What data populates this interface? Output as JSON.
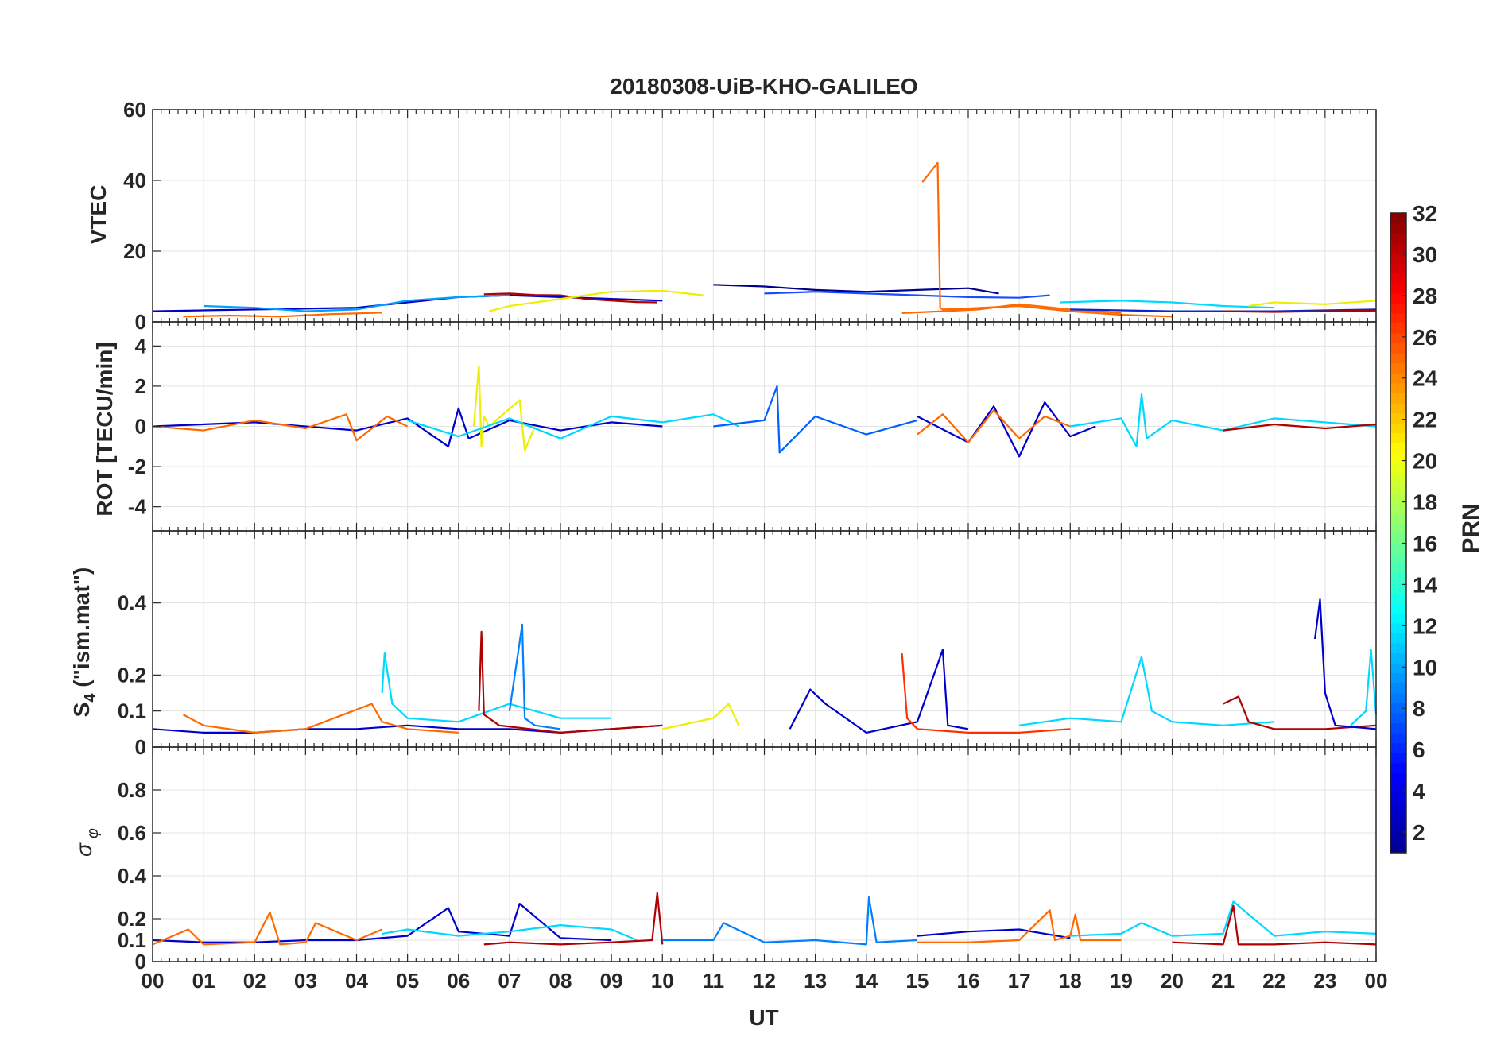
{
  "figure_title": "20180308-UiB-KHO-GALILEO",
  "colormap": [
    "#00008f",
    "#0000ff",
    "#0080ff",
    "#00ffff",
    "#80ff80",
    "#ffff00",
    "#ff8000",
    "#ff0000",
    "#800000"
  ],
  "colorbar": {
    "label": "PRN",
    "range": [
      1,
      32
    ],
    "tick_labels": [
      "2",
      "4",
      "6",
      "8",
      "10",
      "12",
      "14",
      "16",
      "18",
      "20",
      "22",
      "24",
      "26",
      "28",
      "30",
      "32"
    ]
  },
  "chart_data": [
    {
      "type": "line",
      "title": "20180308-UiB-KHO-GALILEO",
      "ylabel": "VTEC",
      "xlabel": "",
      "xlim": [
        0,
        24
      ],
      "ylim": [
        0,
        60
      ],
      "yticks": [
        "0",
        "20",
        "40",
        "60"
      ],
      "grid": true,
      "series": [
        {
          "color": "#0000cc",
          "x": [
            0,
            2,
            4,
            5,
            6,
            7,
            8,
            9,
            10
          ],
          "y": [
            3,
            3.5,
            4,
            5.5,
            7,
            7.5,
            7,
            6.5,
            6
          ]
        },
        {
          "color": "#00a0ff",
          "x": [
            1,
            2,
            3,
            4,
            5,
            6,
            7
          ],
          "y": [
            4.5,
            4,
            3,
            3.5,
            6,
            7,
            7.5
          ]
        },
        {
          "color": "#ff6a00",
          "x": [
            0.6,
            1.5,
            2.5,
            3.5,
            4.5
          ],
          "y": [
            1.5,
            1.8,
            1.5,
            2.2,
            2.6
          ]
        },
        {
          "color": "#b00000",
          "x": [
            6.5,
            7,
            7.5,
            8,
            8.5,
            9,
            9.5,
            9.9
          ],
          "y": [
            7.8,
            8,
            7.6,
            7.5,
            6.5,
            6,
            5.6,
            5.5
          ]
        },
        {
          "color": "#eeee00",
          "x": [
            6.6,
            7,
            8,
            9,
            10,
            10.8
          ],
          "y": [
            3,
            4.5,
            6.5,
            8.5,
            8.8,
            7.5
          ]
        },
        {
          "color": "#00008f",
          "x": [
            11,
            12,
            13,
            14,
            15,
            16,
            16.6
          ],
          "y": [
            10.5,
            10,
            9,
            8.5,
            9,
            9.5,
            8
          ]
        },
        {
          "color": "#1a4cff",
          "x": [
            12,
            13,
            14,
            15,
            16,
            17,
            17.6
          ],
          "y": [
            8,
            8.5,
            8,
            7.5,
            7,
            6.8,
            7.5
          ]
        },
        {
          "color": "#ff6a00",
          "x": [
            15.1,
            15.4,
            15.45,
            15.5,
            16,
            17,
            18,
            19,
            20
          ],
          "y": [
            39.5,
            45,
            4,
            3.5,
            3.8,
            4.5,
            3,
            2,
            1.5
          ]
        },
        {
          "color": "#ff6a00",
          "x": [
            14.7,
            15.5,
            16.2,
            17,
            18,
            19
          ],
          "y": [
            2.5,
            3,
            3.5,
            5,
            3.5,
            2.5
          ]
        },
        {
          "color": "#00d8ff",
          "x": [
            17.8,
            19,
            20,
            21,
            22
          ],
          "y": [
            5.5,
            6,
            5.5,
            4.5,
            4
          ]
        },
        {
          "color": "#eeee00",
          "x": [
            21.5,
            22,
            23,
            24
          ],
          "y": [
            4.5,
            5.5,
            5,
            6
          ]
        },
        {
          "color": "#0a28cc",
          "x": [
            18,
            20,
            22,
            24
          ],
          "y": [
            3.5,
            3,
            3,
            3.5
          ]
        },
        {
          "color": "#b00000",
          "x": [
            21,
            22,
            23,
            24
          ],
          "y": [
            3,
            2.8,
            3,
            3.2
          ]
        }
      ]
    },
    {
      "type": "line",
      "ylabel": "ROT [TECU/min]",
      "xlabel": "",
      "xlim": [
        0,
        24
      ],
      "ylim": [
        -5.2,
        5.2
      ],
      "yticks": [
        "-4",
        "-2",
        "0",
        "2",
        "4"
      ],
      "grid": true,
      "series": [
        {
          "color": "#0000cc",
          "x": [
            0,
            2,
            4,
            5,
            5.8,
            6,
            6.2,
            7,
            8,
            9,
            10
          ],
          "y": [
            0,
            0.2,
            -0.2,
            0.4,
            -1,
            0.9,
            -0.6,
            0.3,
            -0.2,
            0.2,
            0
          ]
        },
        {
          "color": "#ff6a00",
          "x": [
            0,
            1,
            2,
            3,
            3.8,
            4,
            4.6,
            5
          ],
          "y": [
            0,
            -0.2,
            0.3,
            -0.1,
            0.6,
            -0.7,
            0.5,
            0
          ]
        },
        {
          "color": "#eeee00",
          "x": [
            6.3,
            6.4,
            6.45,
            6.5,
            6.6,
            7.2,
            7.3,
            7.5
          ],
          "y": [
            0,
            3,
            -1,
            0.5,
            0,
            1.3,
            -1.2,
            0
          ]
        },
        {
          "color": "#00d8ff",
          "x": [
            5,
            6,
            7,
            8,
            9,
            10,
            11,
            11.5
          ],
          "y": [
            0.3,
            -0.5,
            0.4,
            -0.6,
            0.5,
            0.2,
            0.6,
            0
          ]
        },
        {
          "color": "#0060ff",
          "x": [
            11,
            12,
            12.25,
            12.3,
            13,
            14,
            15
          ],
          "y": [
            0,
            0.3,
            2,
            -1.3,
            0.5,
            -0.4,
            0.3
          ]
        },
        {
          "color": "#0000cc",
          "x": [
            15,
            16,
            16.5,
            17,
            17.5,
            18,
            18.5
          ],
          "y": [
            0.5,
            -0.8,
            1,
            -1.5,
            1.2,
            -0.5,
            0
          ]
        },
        {
          "color": "#ff6a00",
          "x": [
            15,
            15.5,
            16,
            16.5,
            17,
            17.5,
            18
          ],
          "y": [
            -0.4,
            0.6,
            -0.8,
            0.8,
            -0.6,
            0.5,
            0
          ]
        },
        {
          "color": "#00d8ff",
          "x": [
            18,
            19,
            19.3,
            19.4,
            19.5,
            20,
            21,
            22,
            24
          ],
          "y": [
            0,
            0.4,
            -1,
            1.6,
            -0.6,
            0.3,
            -0.2,
            0.4,
            0
          ]
        },
        {
          "color": "#b00000",
          "x": [
            21,
            22,
            23,
            24
          ],
          "y": [
            -0.2,
            0.1,
            -0.1,
            0.1
          ]
        }
      ]
    },
    {
      "type": "line",
      "ylabel": "S4 (\"ism.mat\")",
      "ylabel_main": "S",
      "ylabel_sub": "4",
      "ylabel_rest": " (\"ism.mat\")",
      "xlabel": "",
      "xlim": [
        0,
        24
      ],
      "ylim": [
        0,
        0.6
      ],
      "yticks": [
        "0",
        "0.1",
        "0.2",
        "0.4"
      ],
      "grid": true,
      "series": [
        {
          "color": "#0000cc",
          "x": [
            0,
            1,
            2,
            3,
            4,
            5,
            6,
            7,
            8,
            9,
            10
          ],
          "y": [
            0.05,
            0.04,
            0.04,
            0.05,
            0.05,
            0.06,
            0.05,
            0.05,
            0.04,
            0.05,
            0.06
          ]
        },
        {
          "color": "#ff6a00",
          "x": [
            0.6,
            1,
            2,
            3,
            4.3,
            4.5,
            5,
            6
          ],
          "y": [
            0.09,
            0.06,
            0.04,
            0.05,
            0.12,
            0.07,
            0.05,
            0.04
          ]
        },
        {
          "color": "#00d8ff",
          "x": [
            4.5,
            4.55,
            4.7,
            5,
            6,
            7,
            8,
            9
          ],
          "y": [
            0.15,
            0.26,
            0.12,
            0.08,
            0.07,
            0.12,
            0.08,
            0.08
          ]
        },
        {
          "color": "#b00000",
          "x": [
            6.4,
            6.45,
            6.5,
            6.8,
            8,
            9,
            10
          ],
          "y": [
            0.1,
            0.32,
            0.09,
            0.06,
            0.04,
            0.05,
            0.06
          ]
        },
        {
          "color": "#0080ff",
          "x": [
            7,
            7.25,
            7.3,
            7.5,
            8
          ],
          "y": [
            0.1,
            0.34,
            0.08,
            0.06,
            0.05
          ]
        },
        {
          "color": "#eeee00",
          "x": [
            10,
            11,
            11.3,
            11.5
          ],
          "y": [
            0.05,
            0.08,
            0.12,
            0.06
          ]
        },
        {
          "color": "#0000cc",
          "x": [
            12.5,
            12.9,
            13.2,
            14,
            15,
            15.5,
            15.6,
            16
          ],
          "y": [
            0.05,
            0.16,
            0.12,
            0.04,
            0.07,
            0.27,
            0.06,
            0.05
          ]
        },
        {
          "color": "#ff3000",
          "x": [
            14.7,
            14.8,
            15,
            16,
            17,
            18
          ],
          "y": [
            0.26,
            0.08,
            0.05,
            0.04,
            0.04,
            0.05
          ]
        },
        {
          "color": "#00d8ff",
          "x": [
            17,
            18,
            19,
            19.4,
            19.6,
            20,
            21,
            22
          ],
          "y": [
            0.06,
            0.08,
            0.07,
            0.25,
            0.1,
            0.07,
            0.06,
            0.07
          ]
        },
        {
          "color": "#b00000",
          "x": [
            21,
            21.3,
            21.5,
            22,
            23,
            24
          ],
          "y": [
            0.12,
            0.14,
            0.07,
            0.05,
            0.05,
            0.06
          ]
        },
        {
          "color": "#0000cc",
          "x": [
            22.8,
            22.9,
            23,
            23.2,
            24
          ],
          "y": [
            0.3,
            0.41,
            0.15,
            0.06,
            0.05
          ]
        },
        {
          "color": "#00d8ff",
          "x": [
            23.5,
            23.8,
            23.9,
            24
          ],
          "y": [
            0.06,
            0.1,
            0.27,
            0.09
          ]
        }
      ]
    },
    {
      "type": "line",
      "ylabel": "σ φ",
      "ylabel_main": "σ",
      "ylabel_sub": "φ",
      "xlabel": "UT",
      "xlim": [
        0,
        24
      ],
      "ylim": [
        0,
        1
      ],
      "yticks": [
        "0",
        "0.1",
        "0.2",
        "0.4",
        "0.6",
        "0.8"
      ],
      "xticks": [
        "00",
        "01",
        "02",
        "03",
        "04",
        "05",
        "06",
        "07",
        "08",
        "09",
        "10",
        "11",
        "12",
        "13",
        "14",
        "15",
        "16",
        "17",
        "18",
        "19",
        "20",
        "21",
        "22",
        "23",
        "00"
      ],
      "grid": true,
      "series": [
        {
          "color": "#0000cc",
          "x": [
            0,
            1,
            2,
            3,
            4,
            5,
            5.8,
            6,
            7,
            7.2,
            8,
            9
          ],
          "y": [
            0.1,
            0.09,
            0.09,
            0.1,
            0.1,
            0.12,
            0.25,
            0.14,
            0.12,
            0.27,
            0.11,
            0.1
          ]
        },
        {
          "color": "#ff6a00",
          "x": [
            0,
            0.7,
            1,
            2,
            2.3,
            2.5,
            3,
            3.2,
            4,
            4.5
          ],
          "y": [
            0.08,
            0.15,
            0.08,
            0.09,
            0.23,
            0.08,
            0.09,
            0.18,
            0.1,
            0.15
          ]
        },
        {
          "color": "#00d8ff",
          "x": [
            4.5,
            5,
            6,
            7,
            8,
            9,
            9.5
          ],
          "y": [
            0.13,
            0.15,
            0.12,
            0.14,
            0.17,
            0.15,
            0.1
          ]
        },
        {
          "color": "#b00000",
          "x": [
            6.5,
            7,
            8,
            9,
            9.8,
            9.9,
            10
          ],
          "y": [
            0.08,
            0.09,
            0.08,
            0.09,
            0.1,
            0.32,
            0.08
          ]
        },
        {
          "color": "#0080ff",
          "x": [
            10,
            11,
            11.2,
            12,
            13,
            14,
            14.05,
            14.2,
            15
          ],
          "y": [
            0.1,
            0.1,
            0.18,
            0.09,
            0.1,
            0.08,
            0.3,
            0.09,
            0.1
          ]
        },
        {
          "color": "#0000cc",
          "x": [
            15,
            16,
            17,
            17.5,
            18
          ],
          "y": [
            0.12,
            0.14,
            0.15,
            0.13,
            0.11
          ]
        },
        {
          "color": "#ff6a00",
          "x": [
            15,
            16,
            17,
            17.6,
            17.7,
            18,
            18.1,
            18.2,
            19
          ],
          "y": [
            0.09,
            0.09,
            0.1,
            0.24,
            0.1,
            0.12,
            0.22,
            0.1,
            0.1
          ]
        },
        {
          "color": "#00d8ff",
          "x": [
            18,
            19,
            19.4,
            20,
            21,
            21.2,
            22,
            23,
            24
          ],
          "y": [
            0.12,
            0.13,
            0.18,
            0.12,
            0.13,
            0.28,
            0.12,
            0.14,
            0.13
          ]
        },
        {
          "color": "#b00000",
          "x": [
            20,
            21,
            21.2,
            21.3,
            22,
            23,
            24
          ],
          "y": [
            0.09,
            0.08,
            0.26,
            0.08,
            0.08,
            0.09,
            0.08
          ]
        }
      ]
    }
  ]
}
